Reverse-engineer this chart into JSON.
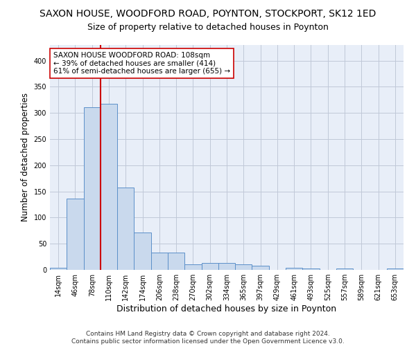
{
  "title": "SAXON HOUSE, WOODFORD ROAD, POYNTON, STOCKPORT, SK12 1ED",
  "subtitle": "Size of property relative to detached houses in Poynton",
  "xlabel": "Distribution of detached houses by size in Poynton",
  "ylabel": "Number of detached properties",
  "bar_color": "#c9d9ed",
  "bar_edge_color": "#5b8fc9",
  "grid_color": "#c0c8d8",
  "background_color": "#e8eef8",
  "categories": [
    "14sqm",
    "46sqm",
    "78sqm",
    "110sqm",
    "142sqm",
    "174sqm",
    "206sqm",
    "238sqm",
    "270sqm",
    "302sqm",
    "334sqm",
    "365sqm",
    "397sqm",
    "429sqm",
    "461sqm",
    "493sqm",
    "525sqm",
    "557sqm",
    "589sqm",
    "621sqm",
    "653sqm"
  ],
  "values": [
    4,
    136,
    311,
    317,
    157,
    71,
    33,
    33,
    10,
    13,
    13,
    10,
    8,
    0,
    4,
    3,
    0,
    3,
    0,
    0,
    3
  ],
  "vline_index": 2.5,
  "vline_color": "#cc0000",
  "annotation_text": "SAXON HOUSE WOODFORD ROAD: 108sqm\n← 39% of detached houses are smaller (414)\n61% of semi-detached houses are larger (655) →",
  "annotation_box_color": "white",
  "annotation_box_edge": "#cc0000",
  "ylim": [
    0,
    430
  ],
  "yticks": [
    0,
    50,
    100,
    150,
    200,
    250,
    300,
    350,
    400
  ],
  "footnote": "Contains HM Land Registry data © Crown copyright and database right 2024.\nContains public sector information licensed under the Open Government Licence v3.0.",
  "title_fontsize": 10,
  "subtitle_fontsize": 9,
  "xlabel_fontsize": 9,
  "ylabel_fontsize": 8.5,
  "tick_fontsize": 7,
  "annotation_fontsize": 7.5,
  "footnote_fontsize": 6.5
}
